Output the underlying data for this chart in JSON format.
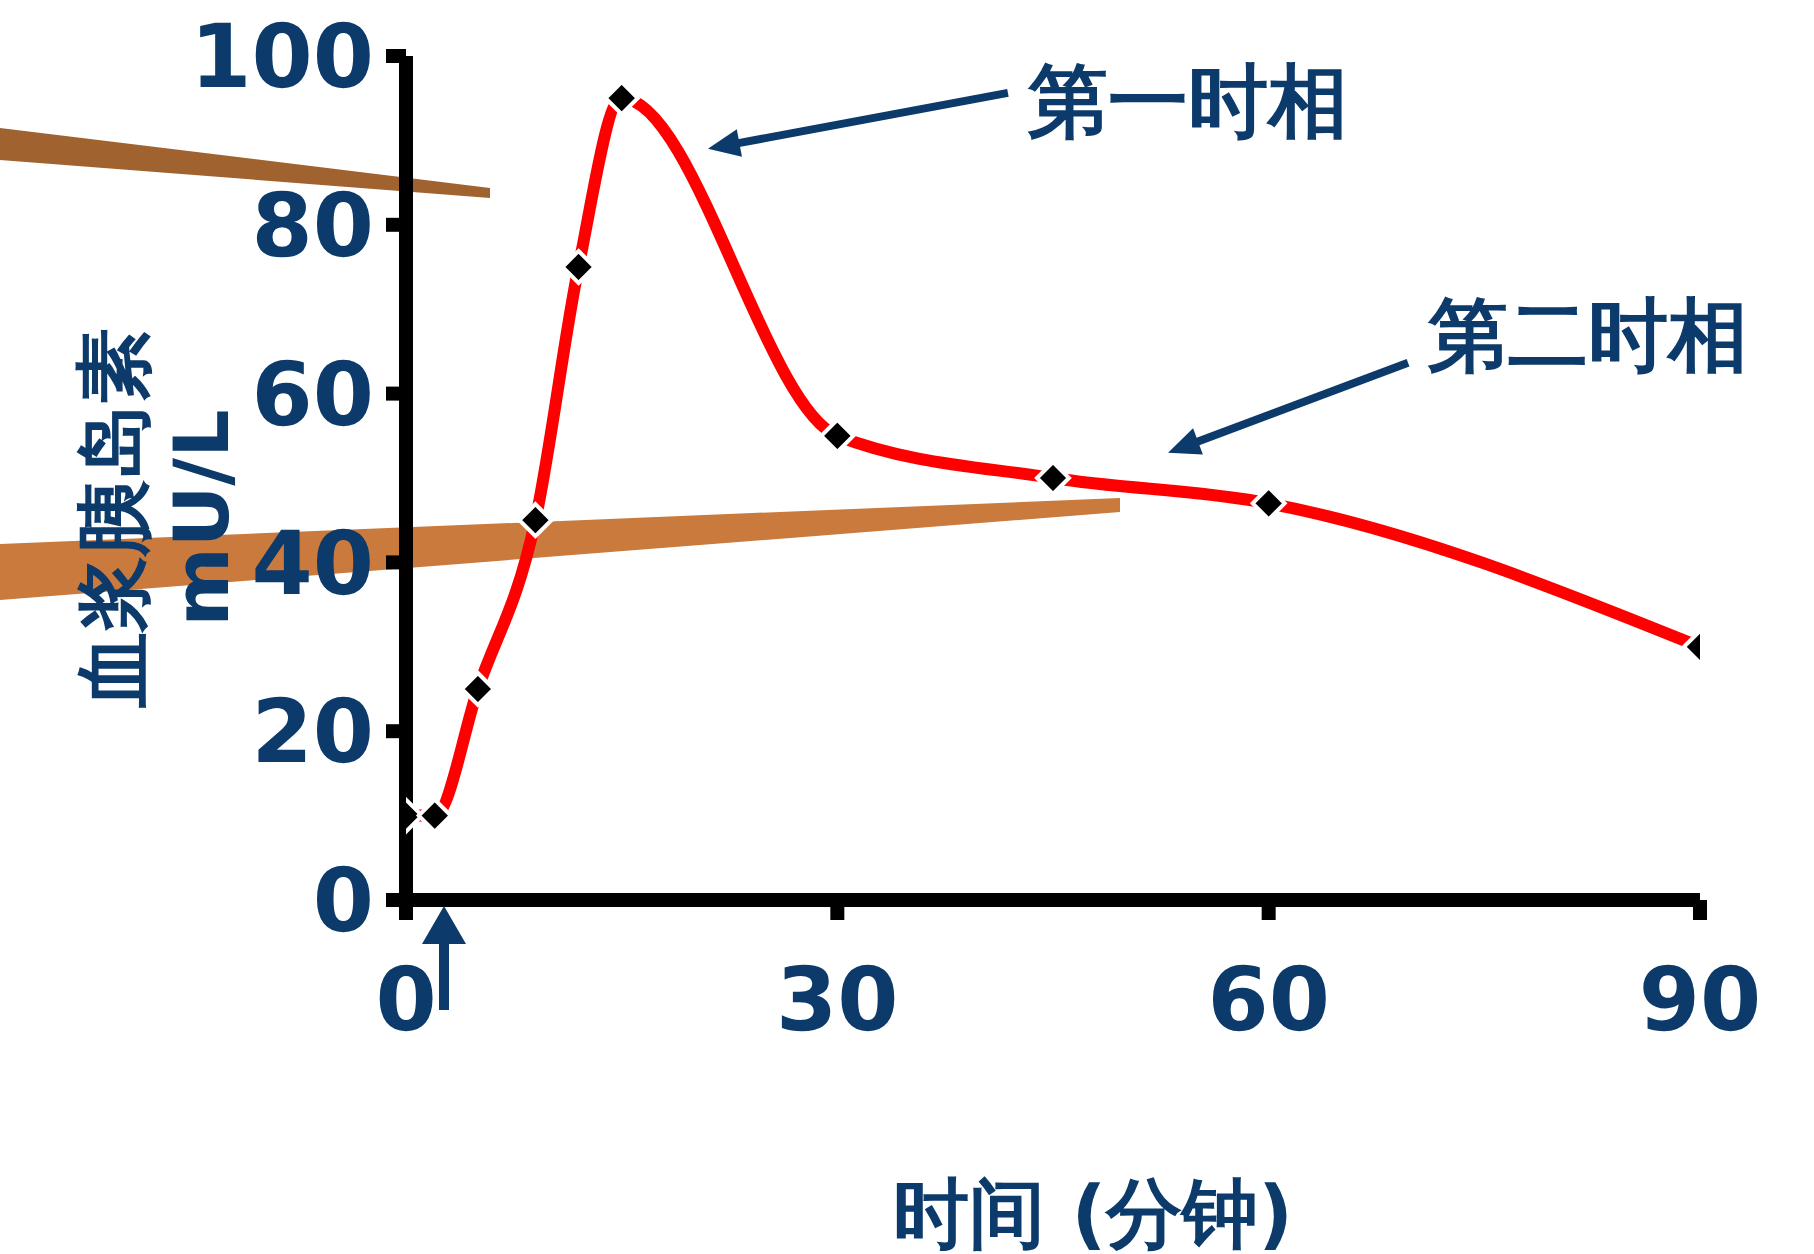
{
  "chart_data": {
    "type": "line",
    "xlabel": "时间 (分钟)",
    "ylabel": "血浆胰岛素\nmU/L",
    "x": [
      0,
      2,
      5,
      9,
      12,
      15,
      30,
      45,
      60,
      90
    ],
    "series": [
      {
        "color": "#ff0000",
        "values": [
          10,
          10,
          25,
          45,
          75,
          95,
          55,
          50,
          47,
          30
        ]
      }
    ],
    "xlim": [
      0,
      90
    ],
    "xticks": [
      0,
      30,
      60,
      90
    ],
    "ylim": [
      0,
      100
    ],
    "yticks": [
      0,
      20,
      40,
      60,
      80,
      100
    ],
    "marker": "diamond",
    "line_style": "solid",
    "grid": false,
    "legend": false,
    "annotations": [
      "第一时相",
      "第二时相"
    ]
  }
}
